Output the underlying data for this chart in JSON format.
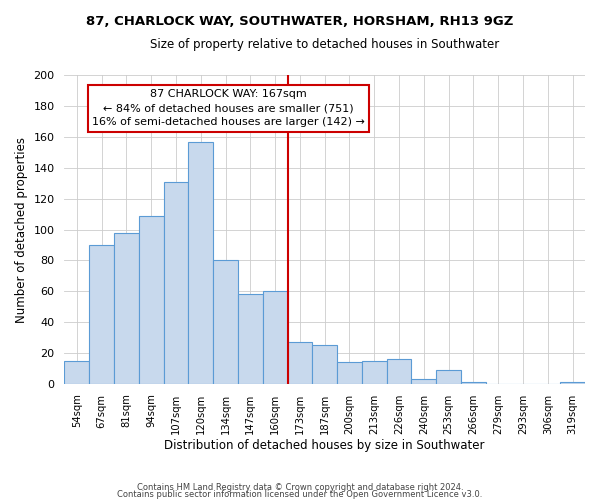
{
  "title1": "87, CHARLOCK WAY, SOUTHWATER, HORSHAM, RH13 9GZ",
  "title2": "Size of property relative to detached houses in Southwater",
  "xlabel": "Distribution of detached houses by size in Southwater",
  "ylabel": "Number of detached properties",
  "footnote1": "Contains HM Land Registry data © Crown copyright and database right 2024.",
  "footnote2": "Contains public sector information licensed under the Open Government Licence v3.0.",
  "bin_labels": [
    "54sqm",
    "67sqm",
    "81sqm",
    "94sqm",
    "107sqm",
    "120sqm",
    "134sqm",
    "147sqm",
    "160sqm",
    "173sqm",
    "187sqm",
    "200sqm",
    "213sqm",
    "226sqm",
    "240sqm",
    "253sqm",
    "266sqm",
    "279sqm",
    "293sqm",
    "306sqm",
    "319sqm"
  ],
  "bar_heights": [
    15,
    90,
    98,
    109,
    131,
    157,
    80,
    58,
    60,
    27,
    25,
    14,
    15,
    16,
    3,
    9,
    1,
    0,
    0,
    0,
    1
  ],
  "bar_color": "#c8d9ed",
  "bar_edge_color": "#5b9bd5",
  "vline_x": 8.5,
  "vline_color": "#cc0000",
  "annotation_title": "87 CHARLOCK WAY: 167sqm",
  "annotation_line1": "← 84% of detached houses are smaller (751)",
  "annotation_line2": "16% of semi-detached houses are larger (142) →",
  "annotation_box_color": "#ffffff",
  "annotation_box_edge": "#cc0000",
  "ylim": [
    0,
    200
  ],
  "yticks": [
    0,
    20,
    40,
    60,
    80,
    100,
    120,
    140,
    160,
    180,
    200
  ]
}
